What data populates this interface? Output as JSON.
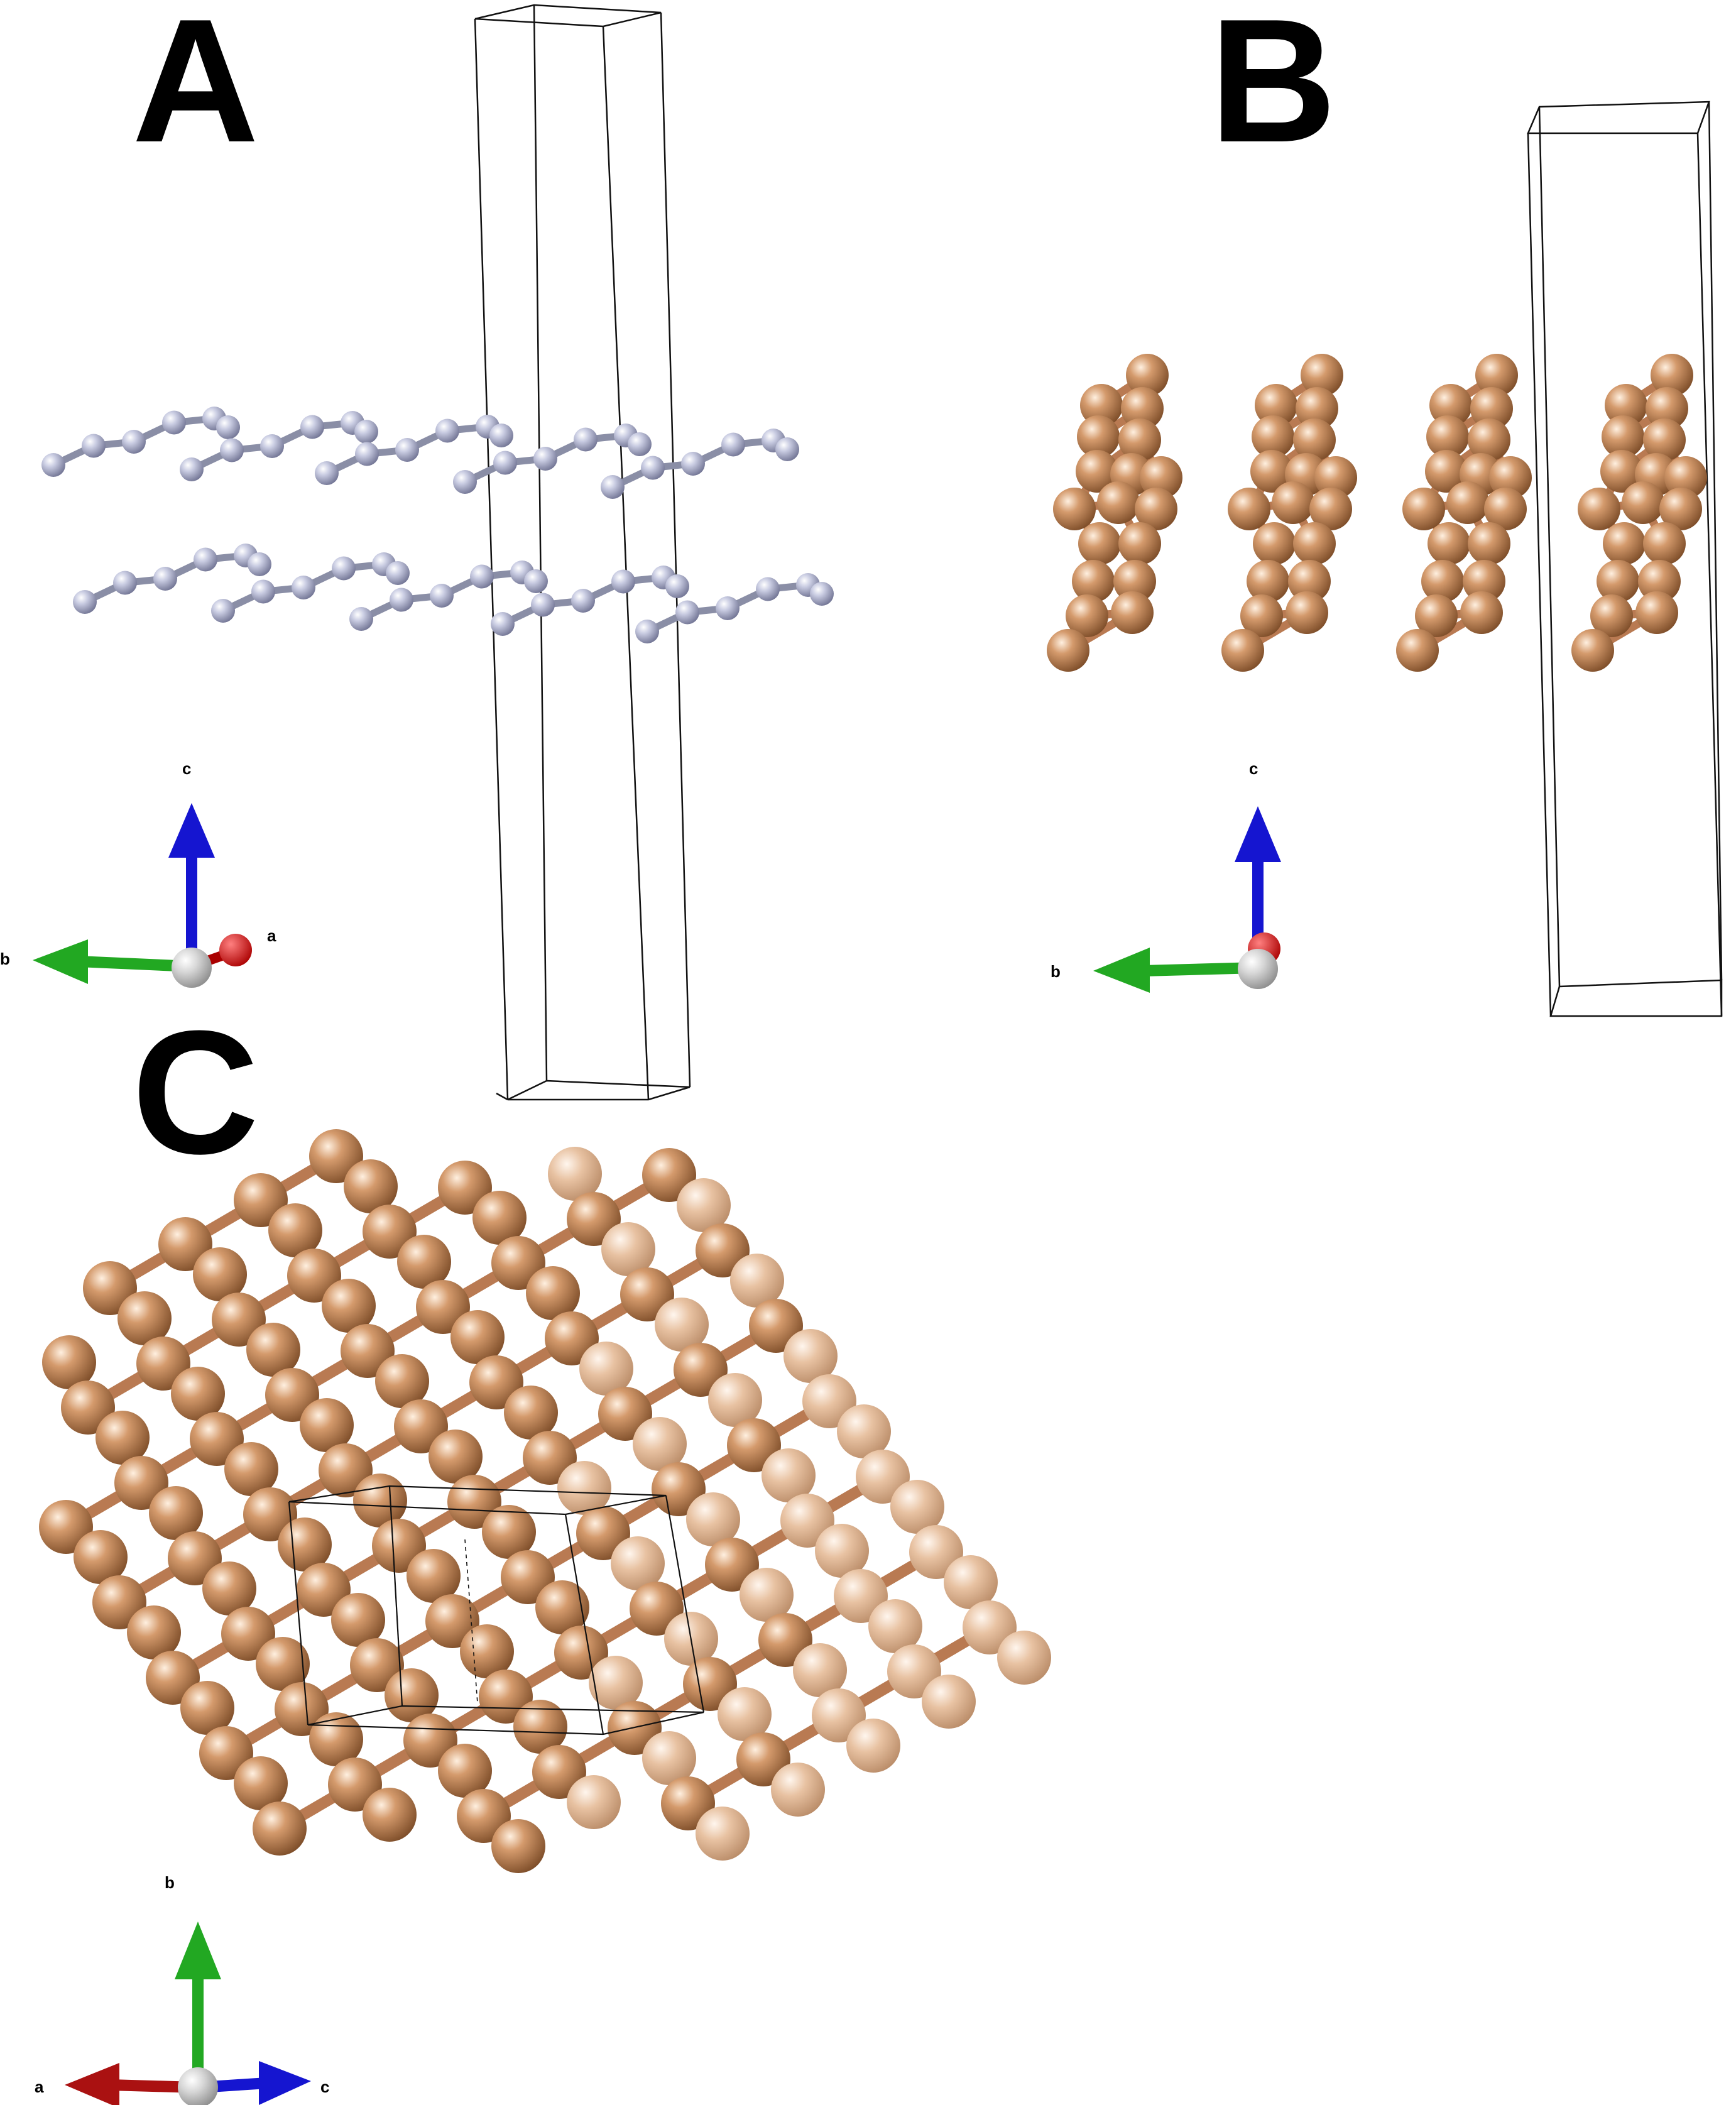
{
  "panels": {
    "A": {
      "label": "A",
      "axes": {
        "a": "a",
        "b": "b",
        "c": "c"
      }
    },
    "B": {
      "label": "B",
      "axes": {
        "b": "b",
        "c": "c"
      }
    },
    "C": {
      "label": "C",
      "axes": {
        "a": "a",
        "b": "b",
        "c": "c"
      }
    }
  },
  "colors": {
    "atom_a": "#b8bcd6",
    "atom_cu": "#c88a5c",
    "bond_a": "#8a8ea6",
    "bond_cu": "#b97a52",
    "axis_a": "#cc1111",
    "axis_b": "#22aa22",
    "axis_c": "#1111cc",
    "axis_origin": "#cfcfcf"
  }
}
